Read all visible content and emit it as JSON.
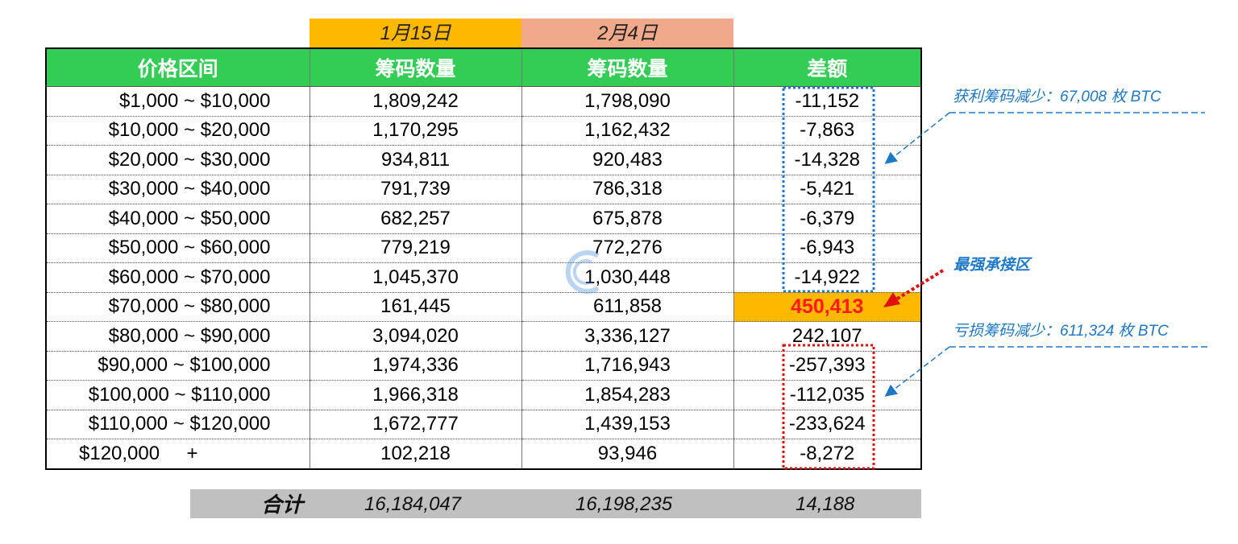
{
  "dates": [
    "1月15日",
    "2月4日"
  ],
  "colors": {
    "header_green": "#33cc55",
    "date1_bg": "#ffb800",
    "date2_bg": "#f0a98a",
    "highlight_bg": "#ffb800",
    "highlight_text": "#ff1a1a",
    "profit_box": "#1e78c8",
    "loss_box": "#e01010",
    "total_bg": "#c0c0c0"
  },
  "table": {
    "headers": [
      "价格区间",
      "筹码数量",
      "筹码数量",
      "差额"
    ],
    "rows": [
      {
        "range": "$1,000 ~ $10,000",
        "jan": "1,809,242",
        "feb": "1,798,090",
        "diff": "-11,152"
      },
      {
        "range": "$10,000 ~ $20,000",
        "jan": "1,170,295",
        "feb": "1,162,432",
        "diff": "-7,863"
      },
      {
        "range": "$20,000 ~ $30,000",
        "jan": "934,811",
        "feb": "920,483",
        "diff": "-14,328"
      },
      {
        "range": "$30,000 ~ $40,000",
        "jan": "791,739",
        "feb": "786,318",
        "diff": "-5,421"
      },
      {
        "range": "$40,000 ~ $50,000",
        "jan": "682,257",
        "feb": "675,878",
        "diff": "-6,379"
      },
      {
        "range": "$50,000 ~ $60,000",
        "jan": "779,219",
        "feb": "772,276",
        "diff": "-6,943"
      },
      {
        "range": "$60,000 ~ $70,000",
        "jan": "1,045,370",
        "feb": "1,030,448",
        "diff": "-14,922"
      },
      {
        "range": "$70,000 ~ $80,000",
        "jan": "161,445",
        "feb": "611,858",
        "diff": "450,413"
      },
      {
        "range": "$80,000 ~ $90,000",
        "jan": "3,094,020",
        "feb": "3,336,127",
        "diff": "242,107"
      },
      {
        "range": "$90,000 ~ $100,000",
        "jan": "1,974,336",
        "feb": "1,716,943",
        "diff": "-257,393"
      },
      {
        "range": "$100,000 ~ $110,000",
        "jan": "1,966,318",
        "feb": "1,854,283",
        "diff": "-112,035"
      },
      {
        "range": "$110,000 ~ $120,000",
        "jan": "1,672,777",
        "feb": "1,439,153",
        "diff": "-233,624"
      },
      {
        "range": "$120,000     +",
        "jan": "102,218",
        "feb": "93,946",
        "diff": "-8,272"
      }
    ],
    "highlight_row": 7
  },
  "total": {
    "label": "合计",
    "jan": "16,184,047",
    "feb": "16,198,235",
    "diff": "14,188"
  },
  "annotations": {
    "profit": "获利筹码减少：67,008 枚 BTC",
    "support": "最强承接区",
    "loss": "亏损筹码减少：611,324 枚 BTC"
  }
}
